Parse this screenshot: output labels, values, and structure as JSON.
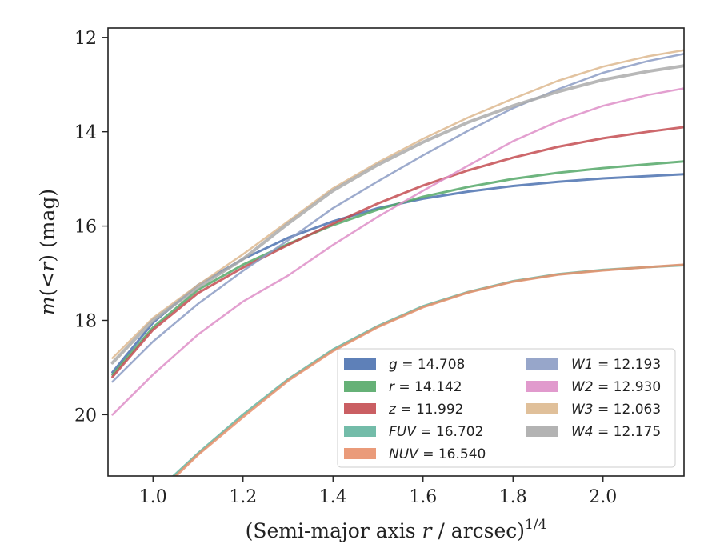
{
  "chart_data": {
    "type": "line",
    "xlabel_main": "(Semi-major axis ",
    "xlabel_var": "r",
    "xlabel_unit": " / arcsec)",
    "xlabel_sup": "1/4",
    "ylabel_var": "m",
    "ylabel_paren": "(<",
    "ylabel_r": "r",
    "ylabel_tail": ") (mag)",
    "xlim": [
      0.9,
      2.18
    ],
    "ylim": [
      21.3,
      11.8
    ],
    "y_inverted": true,
    "xticks": [
      1.0,
      1.2,
      1.4,
      1.6,
      1.8,
      2.0
    ],
    "xtick_labels": [
      "1.0",
      "1.2",
      "1.4",
      "1.6",
      "1.8",
      "2.0"
    ],
    "yticks": [
      12,
      14,
      16,
      18,
      20
    ],
    "ytick_labels": [
      "12",
      "14",
      "16",
      "18",
      "20"
    ],
    "legend_position": "lower-right",
    "legend_columns": 2,
    "series": [
      {
        "name": "g",
        "legend_value": "= 14.708",
        "color": "#4c72b0",
        "width": 3,
        "x": [
          0.91,
          1.0,
          1.1,
          1.2,
          1.3,
          1.4,
          1.5,
          1.6,
          1.7,
          1.8,
          1.9,
          2.0,
          2.1,
          2.18
        ],
        "y": [
          19.1,
          18.05,
          17.25,
          16.7,
          16.25,
          15.9,
          15.62,
          15.42,
          15.27,
          15.15,
          15.06,
          14.99,
          14.94,
          14.9
        ]
      },
      {
        "name": "r",
        "legend_value": "= 14.142",
        "color": "#55a868",
        "width": 3,
        "x": [
          0.91,
          1.0,
          1.1,
          1.2,
          1.3,
          1.4,
          1.5,
          1.6,
          1.7,
          1.8,
          1.9,
          2.0,
          2.1,
          2.18
        ],
        "y": [
          19.15,
          18.15,
          17.35,
          16.82,
          16.38,
          15.98,
          15.65,
          15.38,
          15.17,
          15.0,
          14.87,
          14.77,
          14.69,
          14.63
        ]
      },
      {
        "name": "z",
        "legend_value": "= 11.992",
        "color": "#c44e52",
        "width": 3,
        "x": [
          0.91,
          1.0,
          1.1,
          1.2,
          1.3,
          1.4,
          1.5,
          1.6,
          1.7,
          1.8,
          1.9,
          2.0,
          2.1,
          2.18
        ],
        "y": [
          19.2,
          18.2,
          17.42,
          16.88,
          16.4,
          15.95,
          15.52,
          15.14,
          14.82,
          14.55,
          14.32,
          14.14,
          14.0,
          13.9
        ]
      },
      {
        "name": "FUV",
        "legend_value": "= 16.702",
        "color": "#64b5a0",
        "width": 3,
        "x": [
          1.04,
          1.1,
          1.2,
          1.3,
          1.4,
          1.5,
          1.6,
          1.7,
          1.8,
          1.9,
          2.0,
          2.1,
          2.18
        ],
        "y": [
          21.35,
          20.82,
          20.0,
          19.25,
          18.62,
          18.12,
          17.7,
          17.4,
          17.17,
          17.02,
          16.93,
          16.87,
          16.83
        ]
      },
      {
        "name": "NUV",
        "legend_value": "= 16.540",
        "color": "#e8906c",
        "width": 3,
        "x": [
          1.04,
          1.1,
          1.2,
          1.3,
          1.4,
          1.5,
          1.6,
          1.7,
          1.8,
          1.9,
          2.0,
          2.1,
          2.18
        ],
        "y": [
          21.4,
          20.85,
          20.05,
          19.28,
          18.65,
          18.14,
          17.72,
          17.41,
          17.18,
          17.03,
          16.94,
          16.87,
          16.82
        ]
      },
      {
        "name": "W1",
        "legend_value": "= 12.193",
        "color": "#8c9cc4",
        "width": 2.5,
        "x": [
          0.91,
          1.0,
          1.1,
          1.2,
          1.3,
          1.4,
          1.5,
          1.6,
          1.7,
          1.8,
          1.9,
          2.0,
          2.1,
          2.18
        ],
        "y": [
          19.3,
          18.45,
          17.65,
          16.95,
          16.3,
          15.62,
          15.05,
          14.5,
          13.98,
          13.5,
          13.1,
          12.75,
          12.5,
          12.35
        ]
      },
      {
        "name": "W2",
        "legend_value": "= 12.930",
        "color": "#de8fc8",
        "width": 2.5,
        "x": [
          0.91,
          1.0,
          1.1,
          1.2,
          1.3,
          1.4,
          1.5,
          1.6,
          1.7,
          1.8,
          1.9,
          2.0,
          2.1,
          2.18
        ],
        "y": [
          20.0,
          19.15,
          18.3,
          17.6,
          17.05,
          16.4,
          15.8,
          15.25,
          14.72,
          14.2,
          13.78,
          13.45,
          13.22,
          13.08
        ]
      },
      {
        "name": "W3",
        "legend_value": "= 12.063",
        "color": "#ddb98f",
        "width": 2.5,
        "x": [
          0.91,
          1.0,
          1.1,
          1.2,
          1.3,
          1.4,
          1.5,
          1.6,
          1.7,
          1.8,
          1.9,
          2.0,
          2.1,
          2.18
        ],
        "y": [
          18.8,
          17.95,
          17.25,
          16.6,
          15.9,
          15.2,
          14.65,
          14.15,
          13.7,
          13.3,
          12.92,
          12.62,
          12.4,
          12.27
        ]
      },
      {
        "name": "W4",
        "legend_value": "= 12.175",
        "color": "#ababab",
        "width": 4,
        "x": [
          0.91,
          1.0,
          1.1,
          1.2,
          1.3,
          1.4,
          1.5,
          1.6,
          1.7,
          1.8,
          1.9,
          2.0,
          2.1,
          2.18
        ],
        "y": [
          18.9,
          18.0,
          17.3,
          16.7,
          15.95,
          15.25,
          14.7,
          14.22,
          13.8,
          13.45,
          13.15,
          12.9,
          12.72,
          12.6
        ]
      }
    ]
  }
}
